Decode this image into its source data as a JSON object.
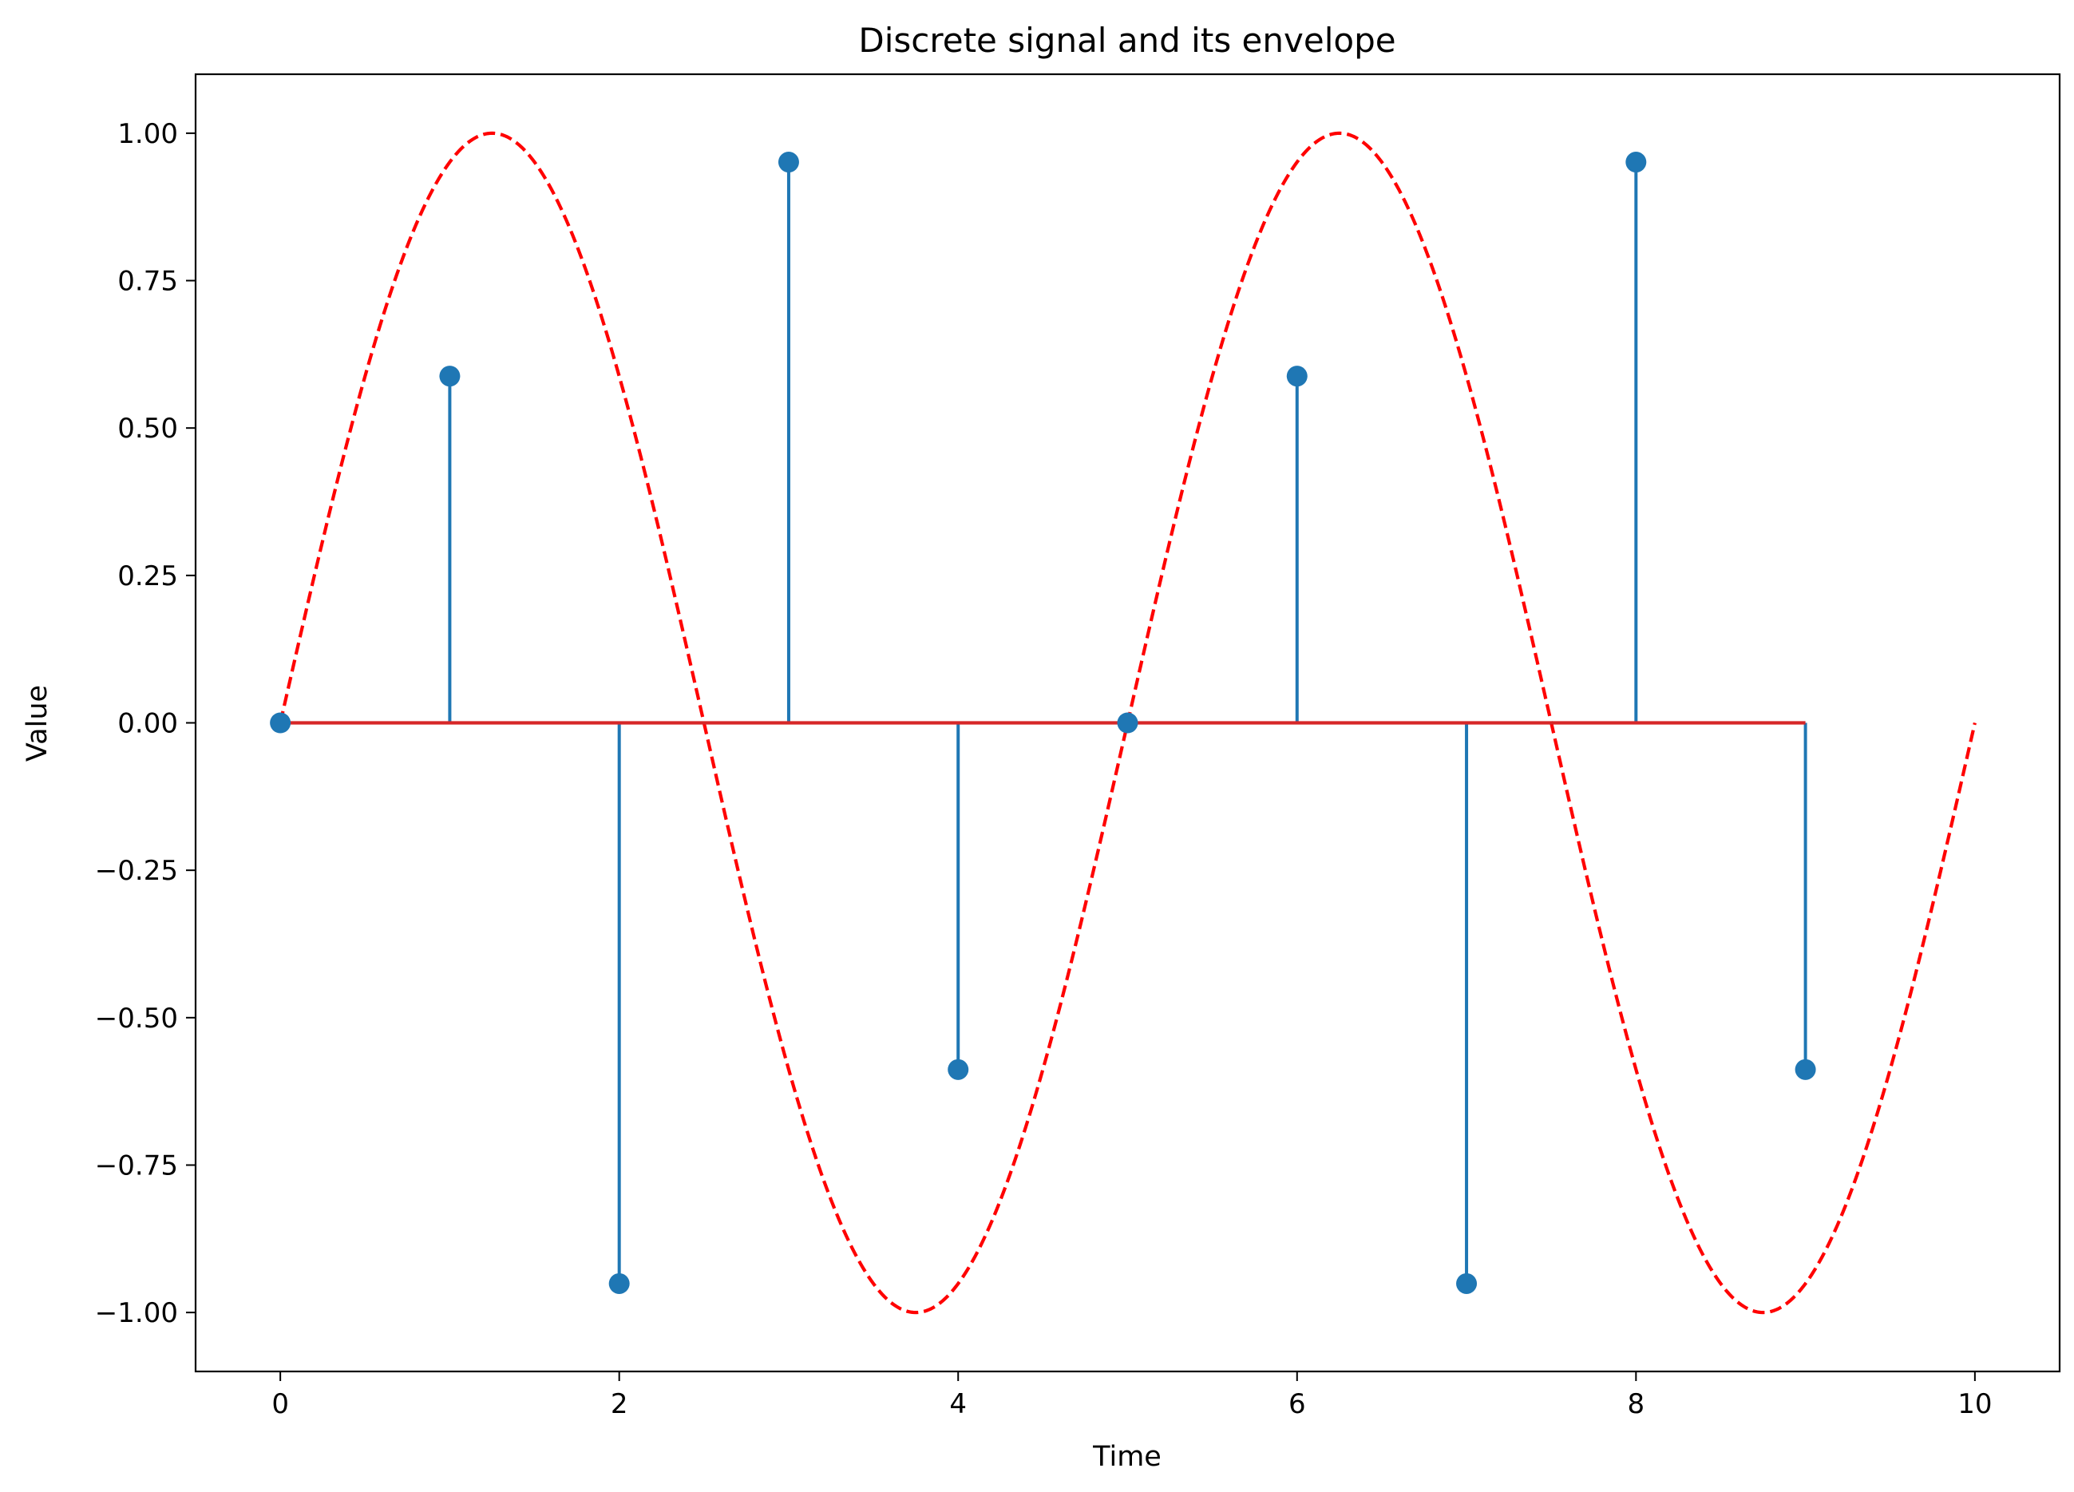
{
  "chart_data": {
    "type": "stem",
    "title": "Discrete signal and its envelope",
    "xlabel": "Time",
    "ylabel": "Value",
    "xlim": [
      -0.5,
      10.5
    ],
    "ylim": [
      -1.1,
      1.1
    ],
    "xticks": [
      0,
      2,
      4,
      6,
      8,
      10
    ],
    "xtick_labels": [
      "0",
      "2",
      "4",
      "6",
      "8",
      "10"
    ],
    "yticks": [
      1.0,
      0.75,
      0.5,
      0.25,
      0.0,
      -0.25,
      -0.5,
      -0.75,
      -1.0
    ],
    "ytick_labels": [
      "1.00",
      "0.75",
      "0.50",
      "0.25",
      "0.00",
      "−0.25",
      "−0.50",
      "−0.75",
      "−1.00"
    ],
    "grid": false,
    "series": [
      {
        "kind": "stem",
        "color": "#1f77b4",
        "baseline_color": "#d62728",
        "baseline_value": 0,
        "x": [
          0,
          1,
          2,
          3,
          4,
          5,
          6,
          7,
          8,
          9
        ],
        "y": [
          0.0,
          0.588,
          -0.951,
          0.951,
          -0.588,
          0.0,
          0.588,
          -0.951,
          0.951,
          -0.588
        ]
      },
      {
        "kind": "line",
        "style": "dashed",
        "color": "#ff0000",
        "function": "sin(0.4*pi*t)",
        "x_range": [
          0,
          10
        ]
      }
    ]
  }
}
